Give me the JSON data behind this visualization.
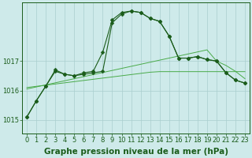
{
  "hours": [
    0,
    1,
    2,
    3,
    4,
    5,
    6,
    7,
    8,
    9,
    10,
    11,
    12,
    13,
    14,
    15,
    16,
    17,
    18,
    19,
    20,
    21,
    22,
    23
  ],
  "s1": [
    1015.1,
    1015.65,
    1016.15,
    1016.7,
    1016.55,
    1016.5,
    1016.6,
    1016.65,
    1017.3,
    1018.4,
    1018.65,
    1018.7,
    1018.65,
    1018.45,
    1018.35,
    1017.85,
    1017.1,
    1017.1,
    1017.15,
    1017.05,
    1017.0,
    1016.6,
    1016.35,
    1016.25
  ],
  "s2": [
    1015.1,
    1015.65,
    1016.15,
    1016.65,
    1016.55,
    1016.5,
    1016.55,
    1016.6,
    1016.65,
    1018.3,
    1018.6,
    1018.7,
    1018.65,
    1018.45,
    1018.35,
    1017.85,
    1017.1,
    1017.1,
    1017.15,
    1017.05,
    1017.0,
    1016.6,
    1016.35,
    1016.25
  ],
  "t1": [
    1016.1,
    1016.14,
    1016.18,
    1016.22,
    1016.26,
    1016.3,
    1016.34,
    1016.38,
    1016.42,
    1016.46,
    1016.5,
    1016.54,
    1016.58,
    1016.62,
    1016.64,
    1016.64,
    1016.64,
    1016.64,
    1016.64,
    1016.64,
    1016.64,
    1016.64,
    1016.64,
    1016.64
  ],
  "t2": [
    1016.05,
    1016.12,
    1016.19,
    1016.26,
    1016.33,
    1016.4,
    1016.47,
    1016.54,
    1016.61,
    1016.68,
    1016.75,
    1016.82,
    1016.89,
    1016.96,
    1017.03,
    1017.1,
    1017.17,
    1017.24,
    1017.31,
    1017.38,
    1017.0,
    1016.85,
    1016.65,
    1016.4
  ],
  "line_color_dark": "#1a5c1a",
  "line_color_light": "#4aab4a",
  "bg_color": "#ceeaea",
  "grid_color": "#aacece",
  "ylabel_ticks": [
    1015,
    1016,
    1017
  ],
  "ylim": [
    1014.55,
    1019.0
  ],
  "xlim": [
    -0.5,
    23.5
  ],
  "xlabel": "Graphe pression niveau de la mer (hPa)",
  "xlabel_fontsize": 7.5,
  "tick_fontsize": 6,
  "marker_size": 2.5
}
